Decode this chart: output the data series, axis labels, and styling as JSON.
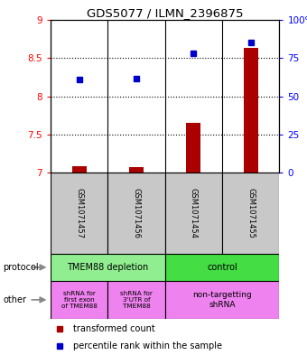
{
  "title": "GDS5077 / ILMN_2396875",
  "samples": [
    "GSM1071457",
    "GSM1071456",
    "GSM1071454",
    "GSM1071455"
  ],
  "red_values": [
    7.08,
    7.07,
    7.65,
    8.63
  ],
  "blue_values": [
    8.22,
    8.23,
    8.56,
    8.7
  ],
  "ylim": [
    7.0,
    9.0
  ],
  "y2lim": [
    0,
    100
  ],
  "yticks": [
    7.0,
    7.5,
    8.0,
    8.5,
    9.0
  ],
  "y2ticks": [
    0,
    25,
    50,
    75,
    100
  ],
  "dotted_lines": [
    7.5,
    8.0,
    8.5
  ],
  "protocol_labels": [
    "TMEM88 depletion",
    "control"
  ],
  "other_labels": [
    "shRNA for\nfirst exon\nof TMEM88",
    "shRNA for\n3'UTR of\nTMEM88",
    "non-targetting\nshRNA"
  ],
  "legend_red": "transformed count",
  "legend_blue": "percentile rank within the sample",
  "bar_color": "#AA0000",
  "dot_color": "#0000CC",
  "gray": "#C8C8C8",
  "green_light": "#90EE90",
  "green_bright": "#44DD44",
  "pink": "#EE82EE",
  "title_fontsize": 9.5
}
